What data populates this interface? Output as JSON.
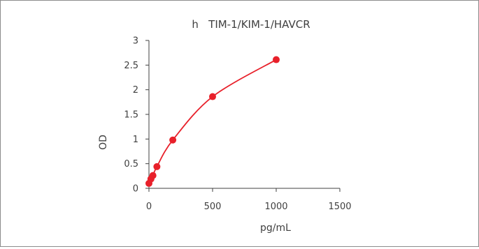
{
  "chart_data": {
    "type": "scatter",
    "title": "h   TIM-1/KIM-1/HAVCR",
    "xlabel": "pg/mL",
    "ylabel": "OD",
    "xlim": [
      0,
      1500
    ],
    "ylim": [
      0,
      3
    ],
    "x_ticks": [
      "0",
      "500",
      "1000",
      "1500"
    ],
    "y_ticks": [
      "0",
      "0.5",
      "1",
      "1.5",
      "2",
      "2.5",
      "3"
    ],
    "grid": false,
    "legend": "none",
    "series": [
      {
        "color": "#e8202a",
        "trendline": true,
        "points": [
          {
            "x": 0,
            "y": 0.1
          },
          {
            "x": 15.6,
            "y": 0.19
          },
          {
            "x": 31.2,
            "y": 0.26
          },
          {
            "x": 62.5,
            "y": 0.44
          },
          {
            "x": 187.5,
            "y": 0.98
          },
          {
            "x": 500,
            "y": 1.86
          },
          {
            "x": 1000,
            "y": 2.61
          }
        ]
      }
    ]
  }
}
